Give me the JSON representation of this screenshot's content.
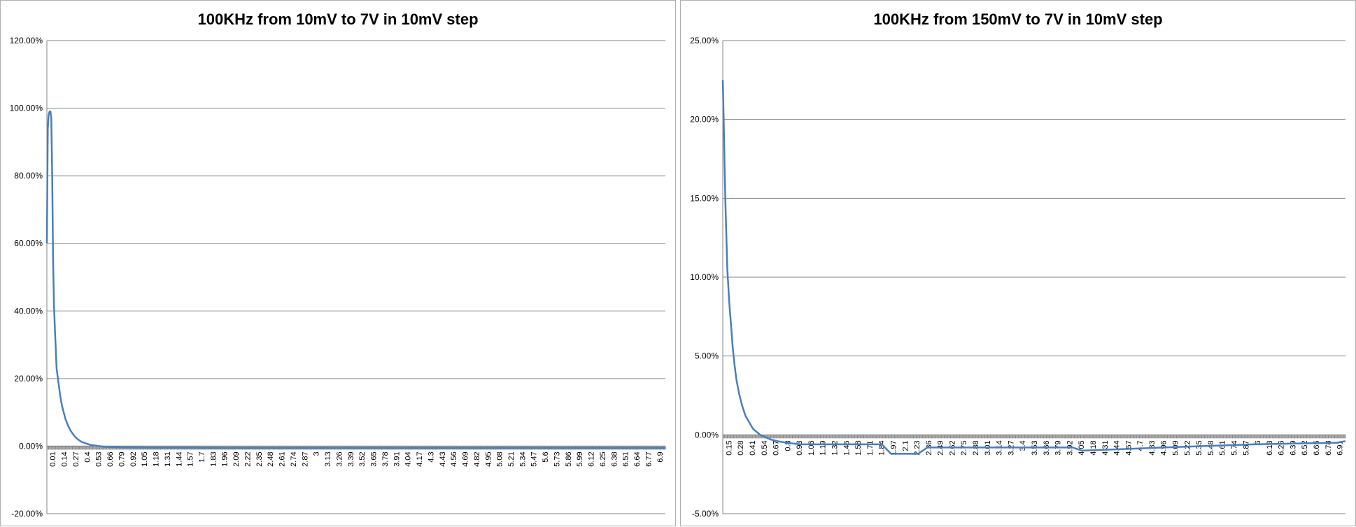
{
  "chart_data": [
    {
      "type": "line",
      "title": "100KHz from 10mV to 7V in 10mV step",
      "xlabel": "",
      "ylabel": "",
      "ylim": [
        -0.2,
        1.2
      ],
      "y_ticks": [
        -0.2,
        0.0,
        0.2,
        0.4,
        0.6,
        0.8,
        1.0,
        1.2
      ],
      "y_tick_labels": [
        "-20.00%",
        "0.00%",
        "20.00%",
        "40.00%",
        "60.00%",
        "80.00%",
        "100.00%",
        "120.00%"
      ],
      "x_range": [
        0.01,
        7.0
      ],
      "x_tick_labels": [
        "0.01",
        "0.14",
        "0.27",
        "0.4",
        "0.53",
        "0.66",
        "0.79",
        "0.92",
        "1.05",
        "1.18",
        "1.31",
        "1.44",
        "1.57",
        "1.7",
        "1.83",
        "1.96",
        "2.09",
        "2.22",
        "2.35",
        "2.48",
        "2.61",
        "2.74",
        "2.87",
        "3",
        "3.13",
        "3.26",
        "3.39",
        "3.52",
        "3.65",
        "3.78",
        "3.91",
        "4.04",
        "4.17",
        "4.3",
        "4.43",
        "4.56",
        "4.69",
        "4.82",
        "4.95",
        "5.08",
        "5.21",
        "5.34",
        "5.47",
        "5.6",
        "5.73",
        "5.86",
        "5.99",
        "6.12",
        "6.25",
        "6.38",
        "6.51",
        "6.64",
        "6.77",
        "6.9"
      ],
      "grid": true,
      "series": [
        {
          "color": "#4a7ebb",
          "x": [
            0.01,
            0.02,
            0.03,
            0.04,
            0.05,
            0.06,
            0.07,
            0.08,
            0.09,
            0.1,
            0.12,
            0.14,
            0.16,
            0.18,
            0.2,
            0.22,
            0.25,
            0.28,
            0.32,
            0.36,
            0.4,
            0.45,
            0.5,
            0.55,
            0.6,
            0.66,
            0.75,
            0.9,
            1.2,
            1.6,
            2.0,
            3.0,
            4.0,
            5.0,
            6.0,
            7.0
          ],
          "y": [
            0.6,
            0.94,
            0.98,
            0.99,
            0.99,
            0.97,
            0.8,
            0.55,
            0.42,
            0.35,
            0.23,
            0.19,
            0.15,
            0.12,
            0.1,
            0.08,
            0.06,
            0.045,
            0.03,
            0.02,
            0.013,
            0.008,
            0.004,
            0.002,
            0.0,
            -0.002,
            -0.003,
            -0.004,
            -0.005,
            -0.005,
            -0.006,
            -0.006,
            -0.006,
            -0.006,
            -0.006,
            -0.006
          ]
        }
      ]
    },
    {
      "type": "line",
      "title": "100KHz from 150mV to 7V in 10mV step",
      "xlabel": "",
      "ylabel": "",
      "ylim": [
        -0.05,
        0.25
      ],
      "y_ticks": [
        -0.05,
        0.0,
        0.05,
        0.1,
        0.15,
        0.2,
        0.25
      ],
      "y_tick_labels": [
        "-5.00%",
        "0.00%",
        "5.00%",
        "10.00%",
        "15.00%",
        "20.00%",
        "25.00%"
      ],
      "x_range": [
        0.15,
        7.0
      ],
      "x_tick_labels": [
        "0.15",
        "0.28",
        "0.41",
        "0.54",
        "0.67",
        "0.8",
        "0.93",
        "1.06",
        "1.19",
        "1.32",
        "1.45",
        "1.58",
        "1.71",
        "1.84",
        "1.97",
        "2.1",
        "2.23",
        "2.36",
        "2.49",
        "2.62",
        "2.75",
        "2.88",
        "3.01",
        "3.14",
        "3.27",
        "3.4",
        "3.53",
        "3.66",
        "3.79",
        "3.92",
        "4.05",
        "4.18",
        "4.31",
        "4.44",
        "4.57",
        "4.7",
        "4.83",
        "4.96",
        "5.09",
        "5.22",
        "5.35",
        "5.48",
        "5.61",
        "5.74",
        "5.87",
        "6",
        "6.13",
        "6.26",
        "6.39",
        "6.52",
        "6.65",
        "6.78",
        "6.91"
      ],
      "grid": true,
      "series": [
        {
          "color": "#4a7ebb",
          "x": [
            0.15,
            0.16,
            0.17,
            0.18,
            0.19,
            0.2,
            0.22,
            0.24,
            0.26,
            0.28,
            0.3,
            0.33,
            0.36,
            0.4,
            0.44,
            0.48,
            0.52,
            0.56,
            0.6,
            0.64,
            0.68,
            0.75,
            0.85,
            1.0,
            1.2,
            1.5,
            1.9,
            2.0,
            2.3,
            2.4,
            3.0,
            4.0,
            4.1,
            5.0,
            6.0,
            6.9,
            7.0
          ],
          "y": [
            0.225,
            0.2,
            0.17,
            0.145,
            0.125,
            0.105,
            0.085,
            0.07,
            0.055,
            0.044,
            0.035,
            0.026,
            0.019,
            0.012,
            0.008,
            0.004,
            0.002,
            0.0,
            -0.001,
            -0.002,
            -0.003,
            -0.004,
            -0.005,
            -0.006,
            -0.006,
            -0.006,
            -0.006,
            -0.012,
            -0.012,
            -0.008,
            -0.008,
            -0.008,
            -0.01,
            -0.008,
            -0.006,
            -0.005,
            -0.004
          ]
        }
      ]
    }
  ]
}
